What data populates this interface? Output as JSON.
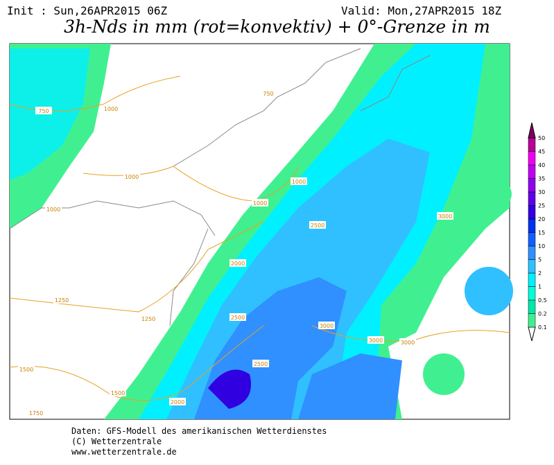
{
  "header": {
    "init": "Init : Sun,26APR2015 06Z",
    "valid": "Valid: Mon,27APR2015 18Z"
  },
  "title": "3h-Nds in mm (rot=konvektiv) + 0°-Grenze in m",
  "legend": {
    "levels": [
      0.1,
      0.2,
      0.5,
      1,
      2,
      5,
      10,
      15,
      20,
      25,
      30,
      35,
      40,
      45,
      50
    ],
    "colors": [
      "#40f090",
      "#00e8a8",
      "#00ffd8",
      "#00f0ff",
      "#30c0ff",
      "#3090ff",
      "#1060ff",
      "#0030f0",
      "#3000e0",
      "#6000e8",
      "#9000f0",
      "#c000f0",
      "#f000f0",
      "#b80098",
      "#800060"
    ]
  },
  "contour_labels": [
    750,
    750,
    1000,
    1000,
    1000,
    1000,
    1000,
    1250,
    1250,
    1500,
    1500,
    1750,
    2000,
    2000,
    2500,
    2500,
    2500,
    3000,
    3000,
    3000,
    3000
  ],
  "footer": [
    "Daten: GFS-Modell des amerikanischen Wetterdienstes",
    "(C) Wetterzentrale",
    "www.wetterzentrale.de"
  ]
}
